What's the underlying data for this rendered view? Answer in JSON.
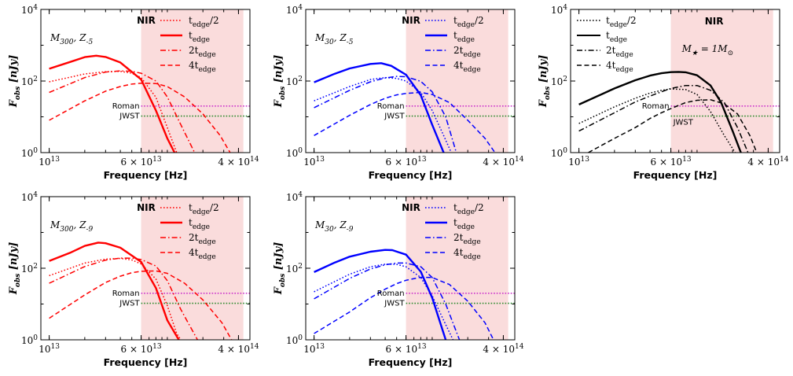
{
  "figure": {
    "band_label": "NIR",
    "band_color": "#fadcdc",
    "x_axis_label": "Frequency [Hz]",
    "y_axis_label": "F_obs [nJy]",
    "instrument_labels": {
      "roman": "Roman",
      "jwst": "JWST"
    },
    "instrument_colors": {
      "roman": "#cc33cc",
      "jwst": "#2e8b2e"
    },
    "legend_labels": [
      "t_edge/2",
      "t_edge",
      "2t_edge",
      "4t_edge"
    ],
    "legend_line_styles": [
      "dotted",
      "solid",
      "dashdot",
      "dashed"
    ]
  },
  "chart_data": [
    {
      "type": "line",
      "panel": "top-left",
      "annotation": "M_300, Z_-5",
      "color": "#ff0000",
      "xscale": "log",
      "yscale": "log",
      "xlim": [
        8500000000000.0,
        500000000000000.0
      ],
      "ylim": [
        1,
        10000
      ],
      "x_ticks": [
        {
          "value": 10000000000000.0,
          "label": "10^13"
        },
        {
          "value": 60000000000000.0,
          "label": "6 × 10^13"
        },
        {
          "value": 400000000000000.0,
          "label": "4 × 10^14"
        }
      ],
      "y_ticks": [
        {
          "value": 1,
          "label": "10^0"
        },
        {
          "value": 100,
          "label": "10^2"
        },
        {
          "value": 10000,
          "label": "10^4"
        }
      ],
      "nir_band": [
        60000000000000.0,
        440000000000000.0
      ],
      "roman_sensitivity": 20,
      "jwst_sensitivity": 10.5,
      "instrument_label_position": "left",
      "legend_position": "top-right, inside NIR band",
      "series": [
        {
          "linestyle": "dotted",
          "x": [
            10000000000000.0,
            20000000000000.0,
            30000000000000.0,
            40000000000000.0,
            50000000000000.0,
            60000000000000.0,
            80000000000000.0,
            100000000000000.0,
            120000000000000.0
          ],
          "y": [
            95,
            158,
            182,
            186,
            165,
            125,
            35,
            5,
            1
          ]
        },
        {
          "linestyle": "solid",
          "x": [
            10000000000000.0,
            15000000000000.0,
            20000000000000.0,
            25000000000000.0,
            30000000000000.0,
            40000000000000.0,
            60000000000000.0,
            80000000000000.0,
            100000000000000.0,
            115000000000000.0
          ],
          "y": [
            220,
            340,
            465,
            510,
            470,
            330,
            110,
            15,
            2.5,
            1
          ]
        },
        {
          "linestyle": "dashdot",
          "x": [
            10000000000000.0,
            20000000000000.0,
            30000000000000.0,
            40000000000000.0,
            50000000000000.0,
            60000000000000.0,
            80000000000000.0,
            100000000000000.0,
            130000000000000.0,
            170000000000000.0
          ],
          "y": [
            48,
            125,
            178,
            192,
            186,
            165,
            100,
            36,
            6,
            1
          ]
        },
        {
          "linestyle": "dashed",
          "x": [
            10000000000000.0,
            20000000000000.0,
            30000000000000.0,
            40000000000000.0,
            50000000000000.0,
            60000000000000.0,
            80000000000000.0,
            100000000000000.0,
            140000000000000.0,
            200000000000000.0,
            280000000000000.0,
            340000000000000.0
          ],
          "y": [
            8,
            28,
            52,
            70,
            82,
            87,
            85,
            70,
            36,
            12,
            3,
            1
          ]
        }
      ]
    },
    {
      "type": "line",
      "panel": "top-middle",
      "annotation": "M_30, Z_-5",
      "color": "#0000ff",
      "xscale": "log",
      "yscale": "log",
      "xlim": [
        8500000000000.0,
        500000000000000.0
      ],
      "ylim": [
        1,
        10000
      ],
      "x_ticks": [
        {
          "value": 10000000000000.0,
          "label": "10^13"
        },
        {
          "value": 60000000000000.0,
          "label": "6 × 10^13"
        },
        {
          "value": 400000000000000.0,
          "label": "4 × 10^14"
        }
      ],
      "y_ticks": [
        {
          "value": 1,
          "label": "10^0"
        },
        {
          "value": 100,
          "label": "10^2"
        },
        {
          "value": 10000,
          "label": "10^4"
        }
      ],
      "nir_band": [
        60000000000000.0,
        440000000000000.0
      ],
      "roman_sensitivity": 20,
      "jwst_sensitivity": 10.5,
      "instrument_label_position": "left",
      "legend_position": "top-right, inside NIR band",
      "series": [
        {
          "linestyle": "dotted",
          "x": [
            10000000000000.0,
            20000000000000.0,
            30000000000000.0,
            40000000000000.0,
            50000000000000.0,
            60000000000000.0,
            80000000000000.0,
            100000000000000.0,
            125000000000000.0,
            145000000000000.0
          ],
          "y": [
            28,
            70,
            110,
            125,
            118,
            100,
            48,
            15,
            3,
            1
          ]
        },
        {
          "linestyle": "solid",
          "x": [
            10000000000000.0,
            15000000000000.0,
            20000000000000.0,
            30000000000000.0,
            37000000000000.0,
            45000000000000.0,
            60000000000000.0,
            80000000000000.0,
            100000000000000.0,
            125000000000000.0
          ],
          "y": [
            92,
            160,
            225,
            300,
            315,
            265,
            150,
            40,
            6,
            1
          ]
        },
        {
          "linestyle": "dashdot",
          "x": [
            10000000000000.0,
            20000000000000.0,
            30000000000000.0,
            40000000000000.0,
            50000000000000.0,
            60000000000000.0,
            80000000000000.0,
            100000000000000.0,
            130000000000000.0,
            160000000000000.0
          ],
          "y": [
            18,
            55,
            95,
            122,
            135,
            132,
            98,
            50,
            10,
            1
          ]
        },
        {
          "linestyle": "dashed",
          "x": [
            10000000000000.0,
            20000000000000.0,
            30000000000000.0,
            40000000000000.0,
            50000000000000.0,
            60000000000000.0,
            80000000000000.0,
            100000000000000.0,
            140000000000000.0,
            200000000000000.0,
            280000000000000.0,
            340000000000000.0
          ],
          "y": [
            3,
            11,
            22,
            33,
            41,
            45,
            48,
            42,
            25,
            8,
            2.5,
            1
          ]
        }
      ]
    },
    {
      "type": "line",
      "panel": "top-right",
      "annotation": "M_★ = 1M_⊙",
      "color": "#000000",
      "xscale": "log",
      "yscale": "log",
      "xlim": [
        8500000000000.0,
        500000000000000.0
      ],
      "ylim": [
        1,
        10000
      ],
      "x_ticks": [
        {
          "value": 10000000000000.0,
          "label": "10^13"
        },
        {
          "value": 60000000000000.0,
          "label": "6 × 10^13"
        },
        {
          "value": 400000000000000.0,
          "label": "4 × 10^14"
        }
      ],
      "y_ticks": [
        {
          "value": 1,
          "label": "10^0"
        },
        {
          "value": 100,
          "label": "10^2"
        },
        {
          "value": 10000,
          "label": "10^4"
        }
      ],
      "nir_band": [
        60000000000000.0,
        440000000000000.0
      ],
      "roman_sensitivity": 20,
      "jwst_sensitivity": 10.5,
      "instrument_label_position": "right",
      "legend_position": "top-left",
      "series": [
        {
          "linestyle": "dotted",
          "x": [
            10000000000000.0,
            20000000000000.0,
            30000000000000.0,
            40000000000000.0,
            50000000000000.0,
            60000000000000.0,
            80000000000000.0,
            100000000000000.0,
            130000000000000.0,
            170000000000000.0,
            210000000000000.0
          ],
          "y": [
            6.5,
            19,
            33,
            46,
            55,
            60,
            58,
            42,
            14,
            3,
            1
          ]
        },
        {
          "linestyle": "solid",
          "x": [
            10000000000000.0,
            20000000000000.0,
            30000000000000.0,
            40000000000000.0,
            50000000000000.0,
            60000000000000.0,
            70000000000000.0,
            80000000000000.0,
            100000000000000.0,
            130000000000000.0,
            160000000000000.0,
            200000000000000.0,
            235000000000000.0
          ],
          "y": [
            22,
            62,
            105,
            142,
            165,
            177,
            180,
            175,
            145,
            75,
            25,
            4,
            1
          ]
        },
        {
          "linestyle": "dashdot",
          "x": [
            10000000000000.0,
            20000000000000.0,
            30000000000000.0,
            40000000000000.0,
            50000000000000.0,
            60000000000000.0,
            80000000000000.0,
            100000000000000.0,
            130000000000000.0,
            170000000000000.0,
            220000000000000.0,
            270000000000000.0
          ],
          "y": [
            4,
            13,
            26,
            38,
            50,
            62,
            75,
            75,
            55,
            25,
            5,
            1
          ]
        },
        {
          "linestyle": "dashed",
          "x": [
            12000000000000.0,
            20000000000000.0,
            30000000000000.0,
            40000000000000.0,
            50000000000000.0,
            60000000000000.0,
            80000000000000.0,
            100000000000000.0,
            130000000000000.0,
            170000000000000.0,
            220000000000000.0,
            280000000000000.0,
            320000000000000.0
          ],
          "y": [
            1,
            2.5,
            5,
            9,
            13,
            17,
            25,
            29,
            30,
            23,
            12,
            3,
            1
          ]
        }
      ]
    },
    {
      "type": "line",
      "panel": "bottom-left",
      "annotation": "M_300, Z_-9",
      "color": "#ff0000",
      "xscale": "log",
      "yscale": "log",
      "xlim": [
        8500000000000.0,
        500000000000000.0
      ],
      "ylim": [
        1,
        10000
      ],
      "x_ticks": [
        {
          "value": 10000000000000.0,
          "label": "10^13"
        },
        {
          "value": 60000000000000.0,
          "label": "6 × 10^13"
        },
        {
          "value": 400000000000000.0,
          "label": "4 × 10^14"
        }
      ],
      "y_ticks": [
        {
          "value": 1,
          "label": "10^0"
        },
        {
          "value": 100,
          "label": "10^2"
        },
        {
          "value": 10000,
          "label": "10^4"
        }
      ],
      "nir_band": [
        60000000000000.0,
        440000000000000.0
      ],
      "roman_sensitivity": 20,
      "jwst_sensitivity": 10.5,
      "instrument_label_position": "left",
      "legend_position": "top-right, inside NIR band",
      "series": [
        {
          "linestyle": "dotted",
          "x": [
            10000000000000.0,
            20000000000000.0,
            30000000000000.0,
            40000000000000.0,
            50000000000000.0,
            60000000000000.0,
            80000000000000.0,
            100000000000000.0,
            120000000000000.0,
            130000000000000.0
          ],
          "y": [
            62,
            140,
            180,
            188,
            170,
            132,
            50,
            9,
            1.5,
            1
          ]
        },
        {
          "linestyle": "solid",
          "x": [
            10000000000000.0,
            15000000000000.0,
            20000000000000.0,
            26000000000000.0,
            30000000000000.0,
            40000000000000.0,
            60000000000000.0,
            80000000000000.0,
            100000000000000.0,
            125000000000000.0
          ],
          "y": [
            160,
            270,
            420,
            520,
            500,
            375,
            150,
            28,
            3.5,
            1
          ]
        },
        {
          "linestyle": "dashdot",
          "x": [
            10000000000000.0,
            20000000000000.0,
            30000000000000.0,
            40000000000000.0,
            50000000000000.0,
            60000000000000.0,
            80000000000000.0,
            100000000000000.0,
            130000000000000.0,
            180000000000000.0
          ],
          "y": [
            38,
            112,
            168,
            192,
            190,
            175,
            115,
            45,
            7,
            1
          ]
        },
        {
          "linestyle": "dashed",
          "x": [
            10000000000000.0,
            20000000000000.0,
            30000000000000.0,
            40000000000000.0,
            50000000000000.0,
            60000000000000.0,
            80000000000000.0,
            100000000000000.0,
            140000000000000.0,
            200000000000000.0,
            290000000000000.0,
            350000000000000.0
          ],
          "y": [
            4,
            18,
            40,
            60,
            75,
            82,
            84,
            72,
            38,
            13,
            3,
            1
          ]
        }
      ]
    },
    {
      "type": "line",
      "panel": "bottom-middle",
      "annotation": "M_30, Z_-9",
      "color": "#0000ff",
      "xscale": "log",
      "yscale": "log",
      "xlim": [
        8500000000000.0,
        500000000000000.0
      ],
      "ylim": [
        1,
        10000
      ],
      "x_ticks": [
        {
          "value": 10000000000000.0,
          "label": "10^13"
        },
        {
          "value": 60000000000000.0,
          "label": "6 × 10^13"
        },
        {
          "value": 400000000000000.0,
          "label": "4 × 10^14"
        }
      ],
      "y_ticks": [
        {
          "value": 1,
          "label": "10^0"
        },
        {
          "value": 100,
          "label": "10^2"
        },
        {
          "value": 10000,
          "label": "10^4"
        }
      ],
      "nir_band": [
        60000000000000.0,
        440000000000000.0
      ],
      "roman_sensitivity": 20,
      "jwst_sensitivity": 10.5,
      "instrument_label_position": "left",
      "legend_position": "top-right, inside NIR band",
      "series": [
        {
          "linestyle": "dotted",
          "x": [
            10000000000000.0,
            20000000000000.0,
            30000000000000.0,
            40000000000000.0,
            50000000000000.0,
            60000000000000.0,
            80000000000000.0,
            100000000000000.0,
            125000000000000.0,
            150000000000000.0
          ],
          "y": [
            22,
            68,
            110,
            130,
            128,
            110,
            55,
            17,
            3.5,
            1
          ]
        },
        {
          "linestyle": "solid",
          "x": [
            10000000000000.0,
            15000000000000.0,
            20000000000000.0,
            30000000000000.0,
            40000000000000.0,
            46000000000000.0,
            60000000000000.0,
            80000000000000.0,
            100000000000000.0,
            130000000000000.0
          ],
          "y": [
            78,
            145,
            210,
            290,
            325,
            320,
            240,
            80,
            15,
            1
          ]
        },
        {
          "linestyle": "dashdot",
          "x": [
            10000000000000.0,
            20000000000000.0,
            30000000000000.0,
            40000000000000.0,
            50000000000000.0,
            60000000000000.0,
            80000000000000.0,
            100000000000000.0,
            130000000000000.0,
            170000000000000.0
          ],
          "y": [
            14,
            52,
            95,
            125,
            140,
            140,
            110,
            55,
            10,
            1
          ]
        },
        {
          "linestyle": "dashed",
          "x": [
            10000000000000.0,
            20000000000000.0,
            30000000000000.0,
            40000000000000.0,
            50000000000000.0,
            60000000000000.0,
            80000000000000.0,
            100000000000000.0,
            140000000000000.0,
            200000000000000.0,
            280000000000000.0,
            330000000000000.0
          ],
          "y": [
            1.5,
            6,
            15,
            26,
            37,
            46,
            56,
            55,
            35,
            12,
            3,
            1
          ]
        }
      ]
    }
  ]
}
